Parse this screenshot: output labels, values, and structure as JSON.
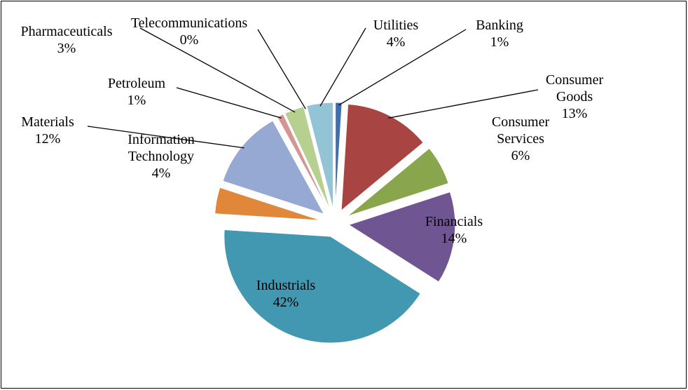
{
  "chart_data": {
    "type": "pie",
    "categories": [
      "Banking",
      "Consumer Goods",
      "Consumer Services",
      "Financials",
      "Industrials",
      "Information Technology",
      "Materials",
      "Petroleum",
      "Pharmaceuticals",
      "Telecommunications",
      "Utilities"
    ],
    "values": [
      1,
      13,
      6,
      14,
      42,
      4,
      12,
      1,
      3,
      0,
      4
    ],
    "value_labels": [
      "1%",
      "13%",
      "6%",
      "14%",
      "42%",
      "4%",
      "12%",
      "1%",
      "3%",
      "0%",
      "4%"
    ],
    "colors": [
      "#3e6fb0",
      "#a84442",
      "#8aa64c",
      "#6f5591",
      "#4298b0",
      "#e0873a",
      "#95a9d3",
      "#d49593",
      "#b7cf8f",
      "#c0504d",
      "#93c4d6"
    ],
    "exploded": true
  }
}
